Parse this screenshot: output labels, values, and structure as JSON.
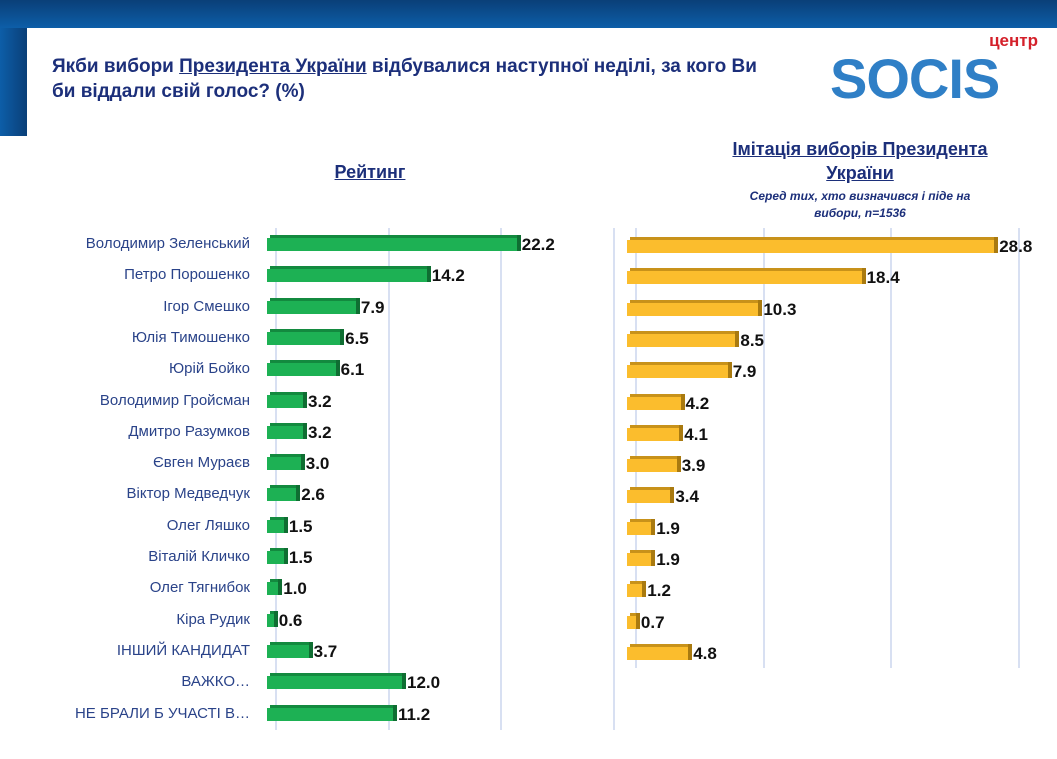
{
  "title": {
    "part1": "Якби вибори ",
    "underlined": "Президента України",
    "part2": " відбувалися наступної неділі, за кого Ви би віддали свій голос? (%)"
  },
  "logo": {
    "small": "центр",
    "word": "SOCIS"
  },
  "colors": {
    "left_bar": "#1db154",
    "right_bar": "#fbbd2d",
    "text": "#1c2f7a"
  },
  "chart_data": [
    {
      "type": "bar",
      "orientation": "horizontal",
      "title": "Рейтинг",
      "xlim": [
        0,
        30
      ],
      "grid": true,
      "categories": [
        "Володимир Зеленський",
        "Петро Порошенко",
        "Ігор Смешко",
        "Юлія Тимошенко",
        "Юрій Бойко",
        "Володимир Гройсман",
        "Дмитро Разумков",
        "Євген Мураєв",
        "Віктор Медведчук",
        "Олег Ляшко",
        "Віталій Кличко",
        "Олег Тягнибок",
        "Кіра Рудик",
        "ІНШИЙ КАНДИДАТ",
        "ВАЖКО…",
        "НЕ БРАЛИ Б УЧАСТІ В…"
      ],
      "values": [
        22.2,
        14.2,
        7.9,
        6.5,
        6.1,
        3.2,
        3.2,
        3.0,
        2.6,
        1.5,
        1.5,
        1.0,
        0.6,
        3.7,
        12.0,
        11.2
      ]
    },
    {
      "type": "bar",
      "orientation": "horizontal",
      "title": "Імітація виборів Президента України",
      "subtitle": "Серед тих, хто визначився і піде на вибори, n=1536",
      "xlim": [
        0,
        30
      ],
      "grid": true,
      "values": [
        28.8,
        18.4,
        10.3,
        8.5,
        7.9,
        4.2,
        4.1,
        3.9,
        3.4,
        1.9,
        1.9,
        1.2,
        0.7,
        4.8
      ]
    }
  ]
}
